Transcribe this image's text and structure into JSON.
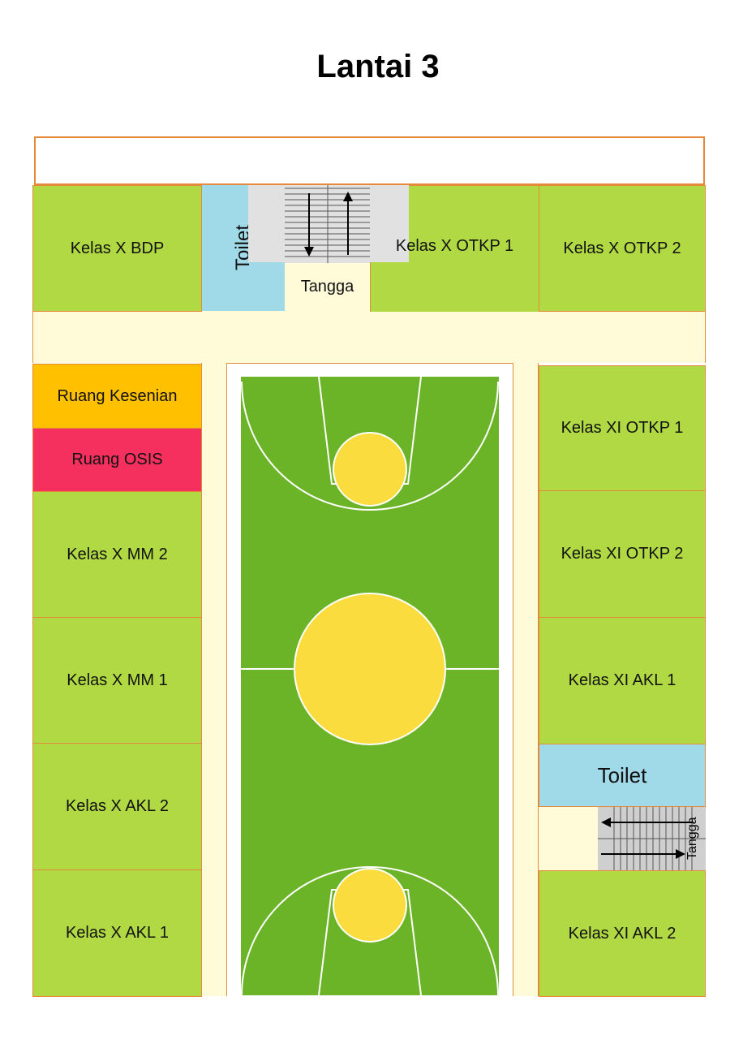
{
  "title": "Lantai 3",
  "rooms": {
    "bdp": "Kelas X BDP",
    "toilet_top": "Toilet",
    "tangga_top": "Tangga",
    "otkp1": "Kelas X OTKP 1",
    "otkp2": "Kelas X OTKP 2",
    "kesenian": "Ruang Kesenian",
    "osis": "Ruang OSIS",
    "mm2": "Kelas X MM 2",
    "mm1": "Kelas X MM 1",
    "akl2": "Kelas X AKL 2",
    "akl1": "Kelas X AKL 1",
    "xi_otkp1": "Kelas XI OTKP 1",
    "xi_otkp2": "Kelas XI OTKP 2",
    "xi_akl1": "Kelas XI AKL 1",
    "toilet_right": "Toilet",
    "tangga_right": "Tangga",
    "xi_akl2": "Kelas XI AKL 2"
  },
  "colors": {
    "classroom": "#b1d944",
    "corridor": "#fffbd9",
    "toilet": "#a0d9e8",
    "kesenian": "#ffc000",
    "osis": "#f5305f",
    "court": "#6bb327",
    "court_circle": "#fadc3e",
    "border": "#e58a3a"
  }
}
